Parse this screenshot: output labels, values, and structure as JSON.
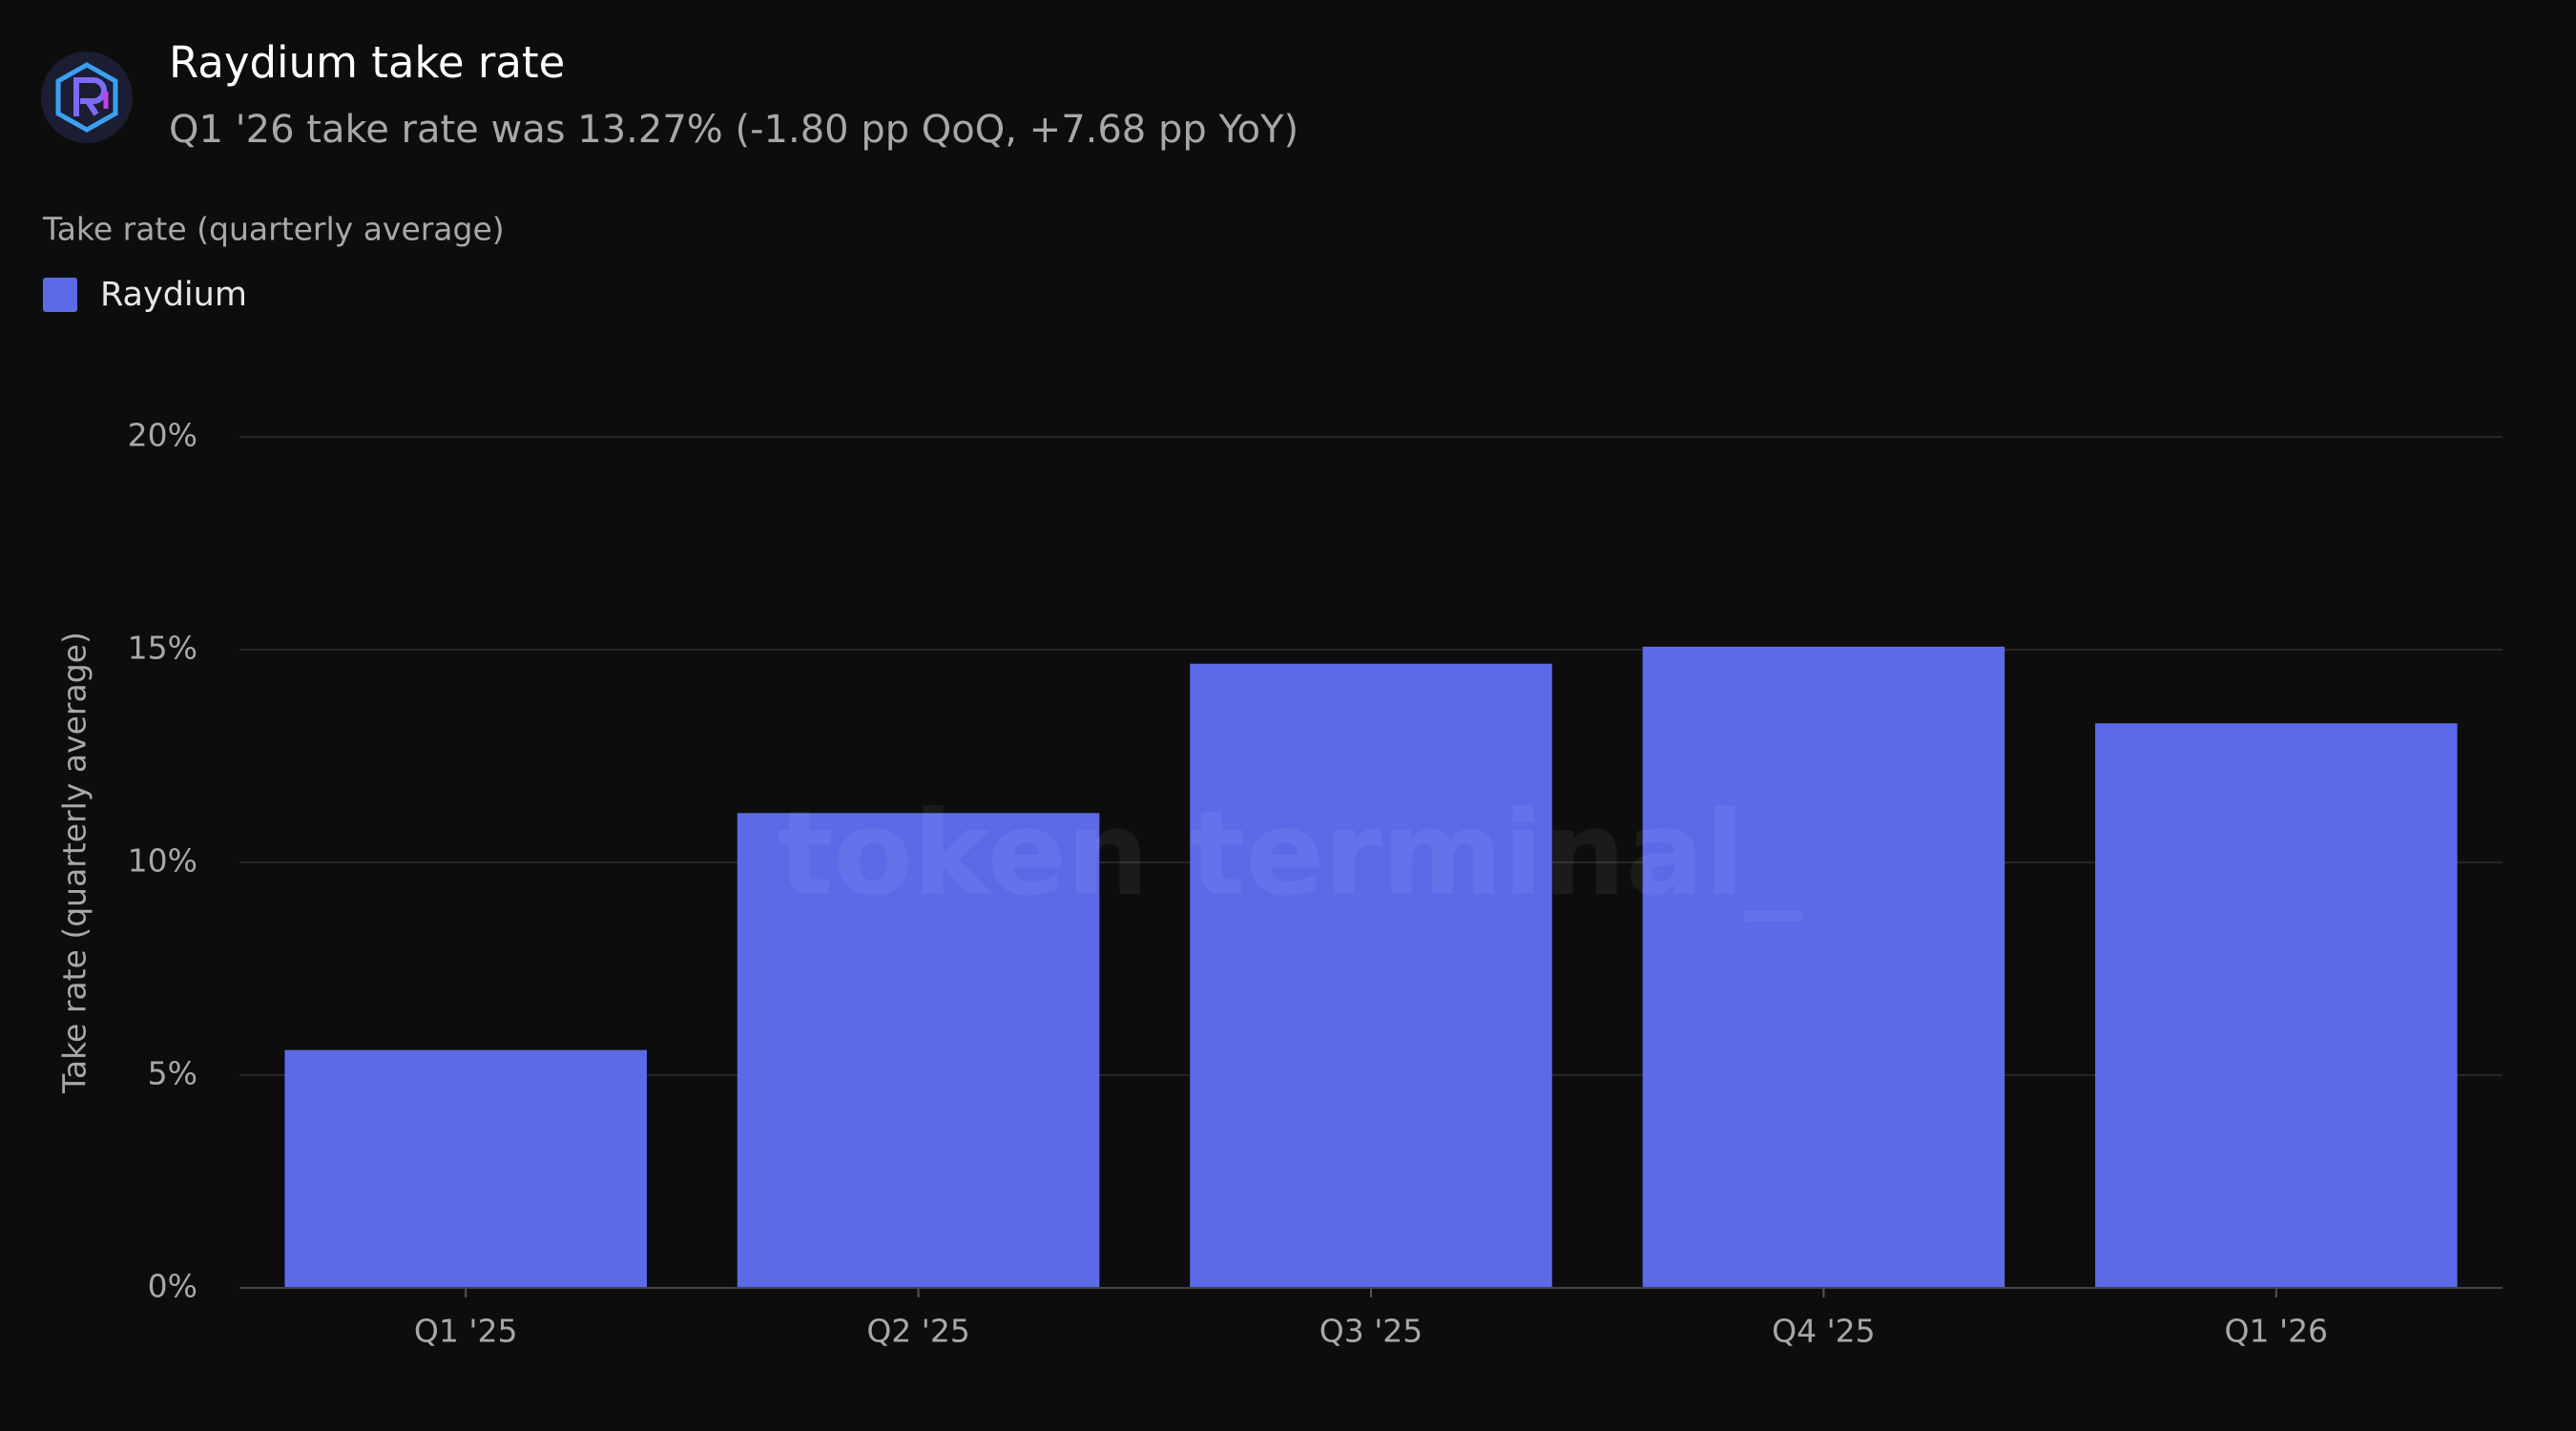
{
  "chart_data": {
    "type": "bar",
    "title": "Raydium take rate",
    "subtitle": "Q1 '26 take rate was 13.27% (-1.80 pp QoQ, +7.68 pp YoY)",
    "legend_title": "Take rate (quarterly average)",
    "y_label": "Take rate (quarterly average)",
    "watermark": "token terminal_",
    "categories": [
      "Q1 '25",
      "Q2 '25",
      "Q3 '25",
      "Q4 '25",
      "Q1 '26"
    ],
    "series": [
      {
        "name": "Raydium",
        "color": "#5b6be8",
        "values": [
          5.59,
          11.16,
          14.67,
          15.07,
          13.27
        ]
      }
    ],
    "ylim": [
      0,
      20
    ],
    "yticks": [
      {
        "value": 0,
        "label": "0%"
      },
      {
        "value": 5,
        "label": "5%"
      },
      {
        "value": 10,
        "label": "10%"
      },
      {
        "value": 15,
        "label": "15%"
      },
      {
        "value": 20,
        "label": "20%"
      }
    ],
    "grid": true
  }
}
